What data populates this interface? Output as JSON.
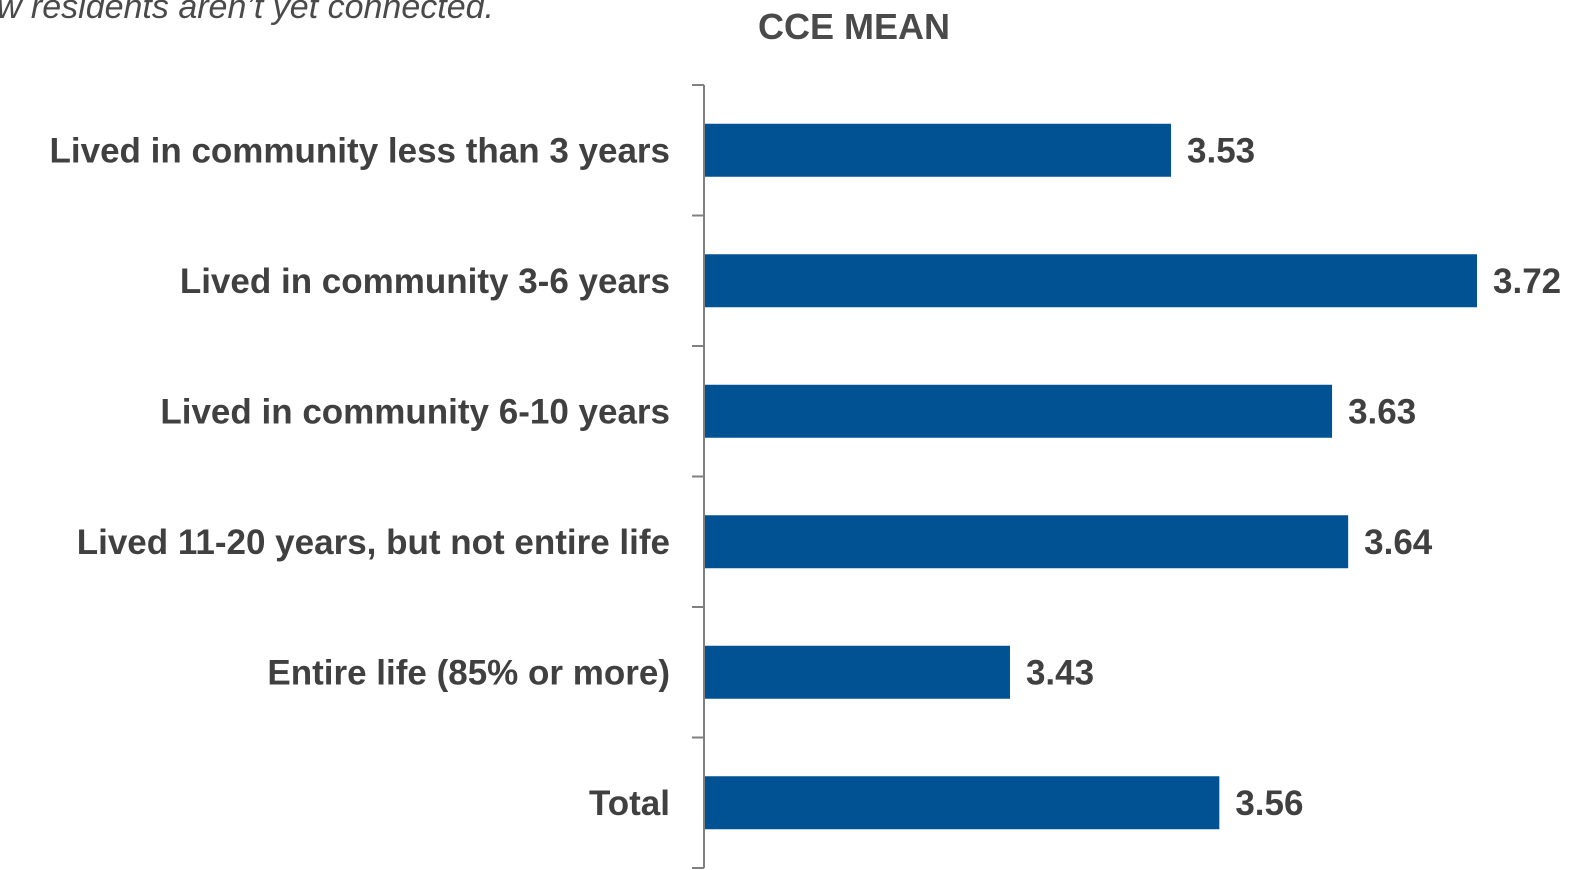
{
  "subtitle": "ew residents aren’t yet connected.",
  "chart_data": {
    "type": "bar",
    "orientation": "horizontal",
    "title": "CCE MEAN",
    "categories": [
      "Lived in community less than 3 years",
      "Lived in community 3-6 years",
      "Lived in community 6-10 years",
      "Lived 11-20 years, but not entire life",
      "Entire life (85% or more)",
      "Total"
    ],
    "values": [
      3.53,
      3.72,
      3.63,
      3.64,
      3.43,
      3.56
    ],
    "value_labels": [
      "3.53",
      "3.72",
      "3.63",
      "3.64",
      "3.43",
      "3.56"
    ],
    "xlim": [
      3.24,
      3.72
    ],
    "grid": false,
    "legend": "none",
    "bar_color": "#005293",
    "axis_color": "#808080"
  }
}
